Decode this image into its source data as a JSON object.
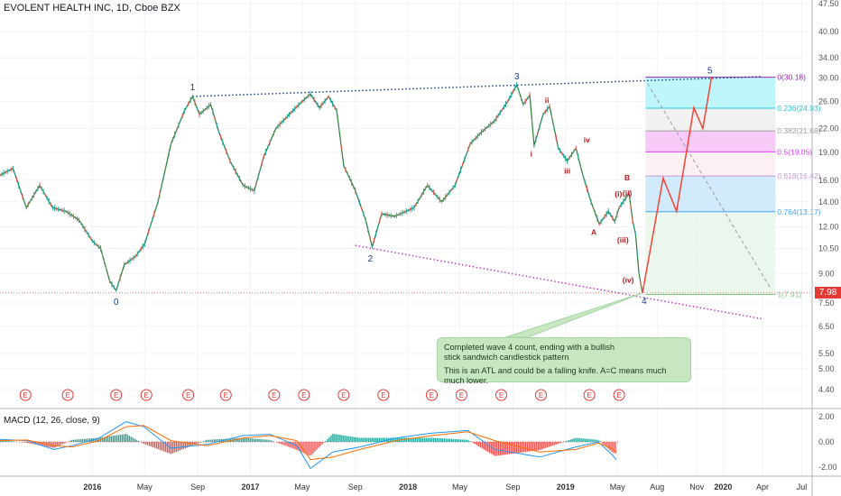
{
  "header": {
    "symbol_title": "EVOLENT HEALTH INC, 1D, Cboe BZX"
  },
  "macd_header": {
    "label": "MACD (12, 26, close, 9)"
  },
  "last_price_tag": "7.98",
  "annotation": {
    "line1": "Completed wave 4 count, ending with a bullish",
    "line1b": "stick sandwich candlestick pattern",
    "line2": "This is an ATL and could be a falling knife. A=C means much much lower."
  },
  "chart_data": [
    {
      "type": "line",
      "title": "EVOLENT HEALTH INC, 1D, Cboe BZX",
      "y_scale": "log",
      "y_ticks": [
        4.4,
        5.0,
        5.5,
        6.5,
        7.5,
        9.0,
        10.5,
        12.0,
        14.0,
        16.0,
        19.0,
        22.0,
        26.0,
        30.0,
        34.0,
        40.0,
        47.5
      ],
      "y_tick_labels": [
        "4.40",
        "5.00",
        "5.50",
        "6.50",
        "7.50",
        "9.00",
        "10.50",
        "12.00",
        "14.00",
        "16.00",
        "19.00",
        "22.00",
        "26.00",
        "30.00",
        "34.00",
        "40.00",
        "47.50"
      ],
      "x_tick_labels": [
        "2016",
        "May",
        "Sep",
        "2017",
        "May",
        "Sep",
        "2018",
        "May",
        "Sep",
        "2019",
        "May",
        "Aug",
        "Nov",
        "2020",
        "Apr",
        "Jul"
      ],
      "x_tick_dates": [
        "2016-01-01",
        "2016-05-01",
        "2016-09-01",
        "2017-01-01",
        "2017-05-01",
        "2017-09-01",
        "2018-01-01",
        "2018-05-01",
        "2018-09-01",
        "2019-01-01",
        "2019-05-01",
        "2019-08-01",
        "2019-11-01",
        "2020-01-01",
        "2020-04-01",
        "2020-07-01"
      ],
      "price_series": [
        [
          "2015-06-01",
          16.5
        ],
        [
          "2015-07-01",
          17.2
        ],
        [
          "2015-08-01",
          13.5
        ],
        [
          "2015-09-01",
          15.5
        ],
        [
          "2015-10-01",
          13.5
        ],
        [
          "2015-11-01",
          13.2
        ],
        [
          "2015-12-01",
          12.5
        ],
        [
          "2016-01-01",
          11.0
        ],
        [
          "2016-01-20",
          10.5
        ],
        [
          "2016-02-10",
          8.6
        ],
        [
          "2016-02-25",
          8.1
        ],
        [
          "2016-03-15",
          9.5
        ],
        [
          "2016-04-10",
          10.0
        ],
        [
          "2016-05-01",
          10.8
        ],
        [
          "2016-06-01",
          14.0
        ],
        [
          "2016-07-01",
          20.0
        ],
        [
          "2016-08-01",
          24.5
        ],
        [
          "2016-08-20",
          26.8
        ],
        [
          "2016-09-05",
          24.0
        ],
        [
          "2016-10-01",
          25.5
        ],
        [
          "2016-10-20",
          21.5
        ],
        [
          "2016-11-15",
          18.0
        ],
        [
          "2016-12-15",
          15.5
        ],
        [
          "2017-01-10",
          15.0
        ],
        [
          "2017-02-01",
          18.5
        ],
        [
          "2017-03-01",
          22.0
        ],
        [
          "2017-04-01",
          24.0
        ],
        [
          "2017-05-01",
          26.0
        ],
        [
          "2017-05-20",
          27.2
        ],
        [
          "2017-06-10",
          25.0
        ],
        [
          "2017-07-01",
          26.8
        ],
        [
          "2017-07-20",
          24.5
        ],
        [
          "2017-08-05",
          17.5
        ],
        [
          "2017-09-01",
          15.0
        ],
        [
          "2017-09-25",
          12.5
        ],
        [
          "2017-10-10",
          10.6
        ],
        [
          "2017-11-01",
          13.0
        ],
        [
          "2017-12-01",
          12.8
        ],
        [
          "2018-01-15",
          13.5
        ],
        [
          "2018-02-15",
          15.5
        ],
        [
          "2018-03-20",
          14.0
        ],
        [
          "2018-04-20",
          15.5
        ],
        [
          "2018-05-25",
          20.0
        ],
        [
          "2018-06-20",
          21.5
        ],
        [
          "2018-07-20",
          23.0
        ],
        [
          "2018-08-20",
          26.0
        ],
        [
          "2018-09-10",
          28.8
        ],
        [
          "2018-09-25",
          25.5
        ],
        [
          "2018-10-10",
          27.0
        ],
        [
          "2018-10-20",
          19.8
        ],
        [
          "2018-11-10",
          24.0
        ],
        [
          "2018-11-25",
          25.2
        ],
        [
          "2018-12-15",
          19.5
        ],
        [
          "2019-01-05",
          18.0
        ],
        [
          "2019-01-25",
          19.5
        ],
        [
          "2019-02-10",
          16.5
        ],
        [
          "2019-03-01",
          14.0
        ],
        [
          "2019-03-20",
          12.2
        ],
        [
          "2019-04-10",
          13.2
        ],
        [
          "2019-04-25",
          12.4
        ],
        [
          "2019-05-05",
          13.5
        ],
        [
          "2019-05-20",
          14.3
        ],
        [
          "2019-05-28",
          14.8
        ],
        [
          "2019-06-05",
          12.5
        ],
        [
          "2019-06-12",
          11.5
        ],
        [
          "2019-06-20",
          9.0
        ],
        [
          "2019-06-28",
          7.98
        ]
      ],
      "wave_labels": [
        {
          "label": "0",
          "date": "2016-02-25",
          "price": 8.1
        },
        {
          "label": "1",
          "date": "2016-08-20",
          "price": 26.8
        },
        {
          "label": "2",
          "date": "2017-10-10",
          "price": 10.6
        },
        {
          "label": "3",
          "date": "2018-09-10",
          "price": 28.8
        },
        {
          "label": "4",
          "date": "2019-06-28",
          "price": 7.98
        },
        {
          "label": "5",
          "date": "2019-12-01",
          "price": 30.18
        },
        {
          "label": "i",
          "date": "2018-10-20",
          "price": 19.8
        },
        {
          "label": "ii",
          "date": "2018-11-25",
          "price": 25.2
        },
        {
          "label": "iii",
          "date": "2019-01-05",
          "price": 18.0
        },
        {
          "label": "iv",
          "date": "2019-01-25",
          "price": 19.5
        },
        {
          "label": "A",
          "date": "2019-03-20",
          "price": 12.2
        },
        {
          "label": "B",
          "date": "2019-05-28",
          "price": 14.8
        },
        {
          "label": "(i)",
          "date": "2019-05-20",
          "price": 14.3
        },
        {
          "label": "(ii)",
          "date": "2019-05-28",
          "price": 14.8
        },
        {
          "label": "(iii)",
          "date": "2019-06-12",
          "price": 11.5
        },
        {
          "label": "(iv)",
          "date": "2019-06-20",
          "price": 9.0
        }
      ],
      "fib_levels": [
        {
          "label": "0(30.18)",
          "value": 30.18,
          "color": "#9c27b0"
        },
        {
          "label": "0.236(24.93)",
          "value": 24.93,
          "color": "#26c6da"
        },
        {
          "label": "0.382(21.68)",
          "value": 21.68,
          "color": "#9e9e9e"
        },
        {
          "label": "0.5(19.05)",
          "value": 19.05,
          "color": "#e040fb"
        },
        {
          "label": "0.618(16.42)",
          "value": 16.42,
          "color": "#ce93d8"
        },
        {
          "label": "0.764(13.17)",
          "value": 13.17,
          "color": "#42a5f5"
        },
        {
          "label": "1(7.91)",
          "value": 7.91,
          "color": "#81c784"
        }
      ],
      "projection_path": [
        [
          "2019-06-28",
          7.98
        ],
        [
          "2019-08-15",
          16.2
        ],
        [
          "2019-09-15",
          13.2
        ],
        [
          "2019-10-25",
          25.0
        ],
        [
          "2019-11-15",
          22.0
        ],
        [
          "2019-12-05",
          30.18
        ]
      ],
      "resistance_line": [
        [
          "2016-08-20",
          26.8
        ],
        [
          "2020-04-01",
          30.3
        ]
      ],
      "support_line": [
        [
          "2017-09-01",
          10.7
        ],
        [
          "2020-04-01",
          6.8
        ]
      ],
      "earnings_marker": "E",
      "earnings_dates": [
        "2015-07-30",
        "2015-11-05",
        "2016-02-25",
        "2016-05-05",
        "2016-08-10",
        "2016-11-05",
        "2017-02-25",
        "2017-05-05",
        "2017-08-05",
        "2017-11-05",
        "2018-02-25",
        "2018-05-05",
        "2018-08-05",
        "2018-11-05",
        "2019-02-25",
        "2019-05-05"
      ]
    },
    {
      "type": "line",
      "title": "MACD (12, 26, close, 9)",
      "y_ticks": [
        -2.0,
        0.0,
        2.0
      ],
      "y_tick_labels": [
        "-2.00",
        "0.00",
        "2.00"
      ],
      "series": [
        {
          "values": [
            [
              0,
              0.2
            ],
            [
              30,
              0.1
            ],
            [
              60,
              -0.6
            ],
            [
              80,
              -0.3
            ],
            [
              110,
              0.3
            ],
            [
              140,
              1.6
            ],
            [
              160,
              1.2
            ],
            [
              190,
              -0.5
            ],
            [
              230,
              -0.2
            ],
            [
              270,
              0.5
            ],
            [
              300,
              0.6
            ],
            [
              330,
              -0.3
            ],
            [
              345,
              -2.1
            ],
            [
              370,
              -0.8
            ],
            [
              400,
              -0.4
            ],
            [
              440,
              0.3
            ],
            [
              480,
              0.7
            ],
            [
              520,
              0.9
            ],
            [
              550,
              -0.6
            ],
            [
              600,
              -1.2
            ],
            [
              640,
              -0.4
            ],
            [
              665,
              0.0
            ],
            [
              680,
              -1.0
            ],
            [
              685,
              -1.4
            ]
          ],
          "color": "#2196f3"
        },
        {
          "values": [
            [
              0,
              0.1
            ],
            [
              30,
              0.15
            ],
            [
              60,
              -0.3
            ],
            [
              80,
              -0.4
            ],
            [
              110,
              0.1
            ],
            [
              140,
              1.2
            ],
            [
              160,
              1.3
            ],
            [
              190,
              0.1
            ],
            [
              230,
              -0.3
            ],
            [
              270,
              0.3
            ],
            [
              300,
              0.5
            ],
            [
              330,
              0.1
            ],
            [
              345,
              -1.4
            ],
            [
              370,
              -1.2
            ],
            [
              400,
              -0.6
            ],
            [
              440,
              0.1
            ],
            [
              480,
              0.5
            ],
            [
              520,
              0.8
            ],
            [
              550,
              0.1
            ],
            [
              600,
              -0.8
            ],
            [
              640,
              -0.6
            ],
            [
              665,
              -0.1
            ],
            [
              680,
              -0.5
            ],
            [
              685,
              -0.8
            ]
          ],
          "color": "#ff6d00"
        }
      ]
    }
  ]
}
